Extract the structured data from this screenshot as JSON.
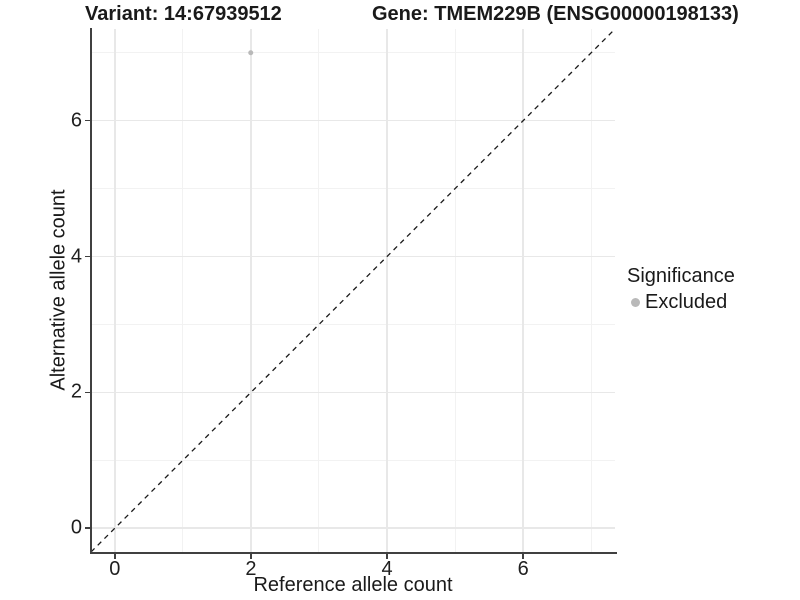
{
  "chart_data": {
    "type": "scatter",
    "titles": {
      "left": "Variant: 14:67939512",
      "right": "Gene: TMEM229B (ENSG00000198133)"
    },
    "xlabel": "Reference allele count",
    "ylabel": "Alternative allele count",
    "xlim": [
      -0.35,
      7.35
    ],
    "ylim": [
      -0.35,
      7.35
    ],
    "x_ticks": [
      0,
      2,
      4,
      6
    ],
    "y_ticks": [
      0,
      2,
      4,
      6
    ],
    "x_minor_gridlines": [
      1,
      3,
      5,
      7
    ],
    "y_minor_gridlines": [
      1,
      3,
      5,
      7
    ],
    "grid": "on",
    "legend_position": "right",
    "reference_line": {
      "style": "dashed",
      "equation": "y = x",
      "color": "#1a1a1a"
    },
    "series": [
      {
        "name": "Excluded",
        "color": "#b9b9b9",
        "points": [
          {
            "x": 2,
            "y": 7
          }
        ]
      }
    ],
    "legend": {
      "title": "Significance",
      "items": [
        {
          "label": "Excluded",
          "color": "#b9b9b9"
        }
      ]
    },
    "colors": {
      "grid_major": "#e8e8e8",
      "grid_minor": "#f2f2f2",
      "axis_line": "#404040",
      "text": "#1a1a1a"
    }
  }
}
